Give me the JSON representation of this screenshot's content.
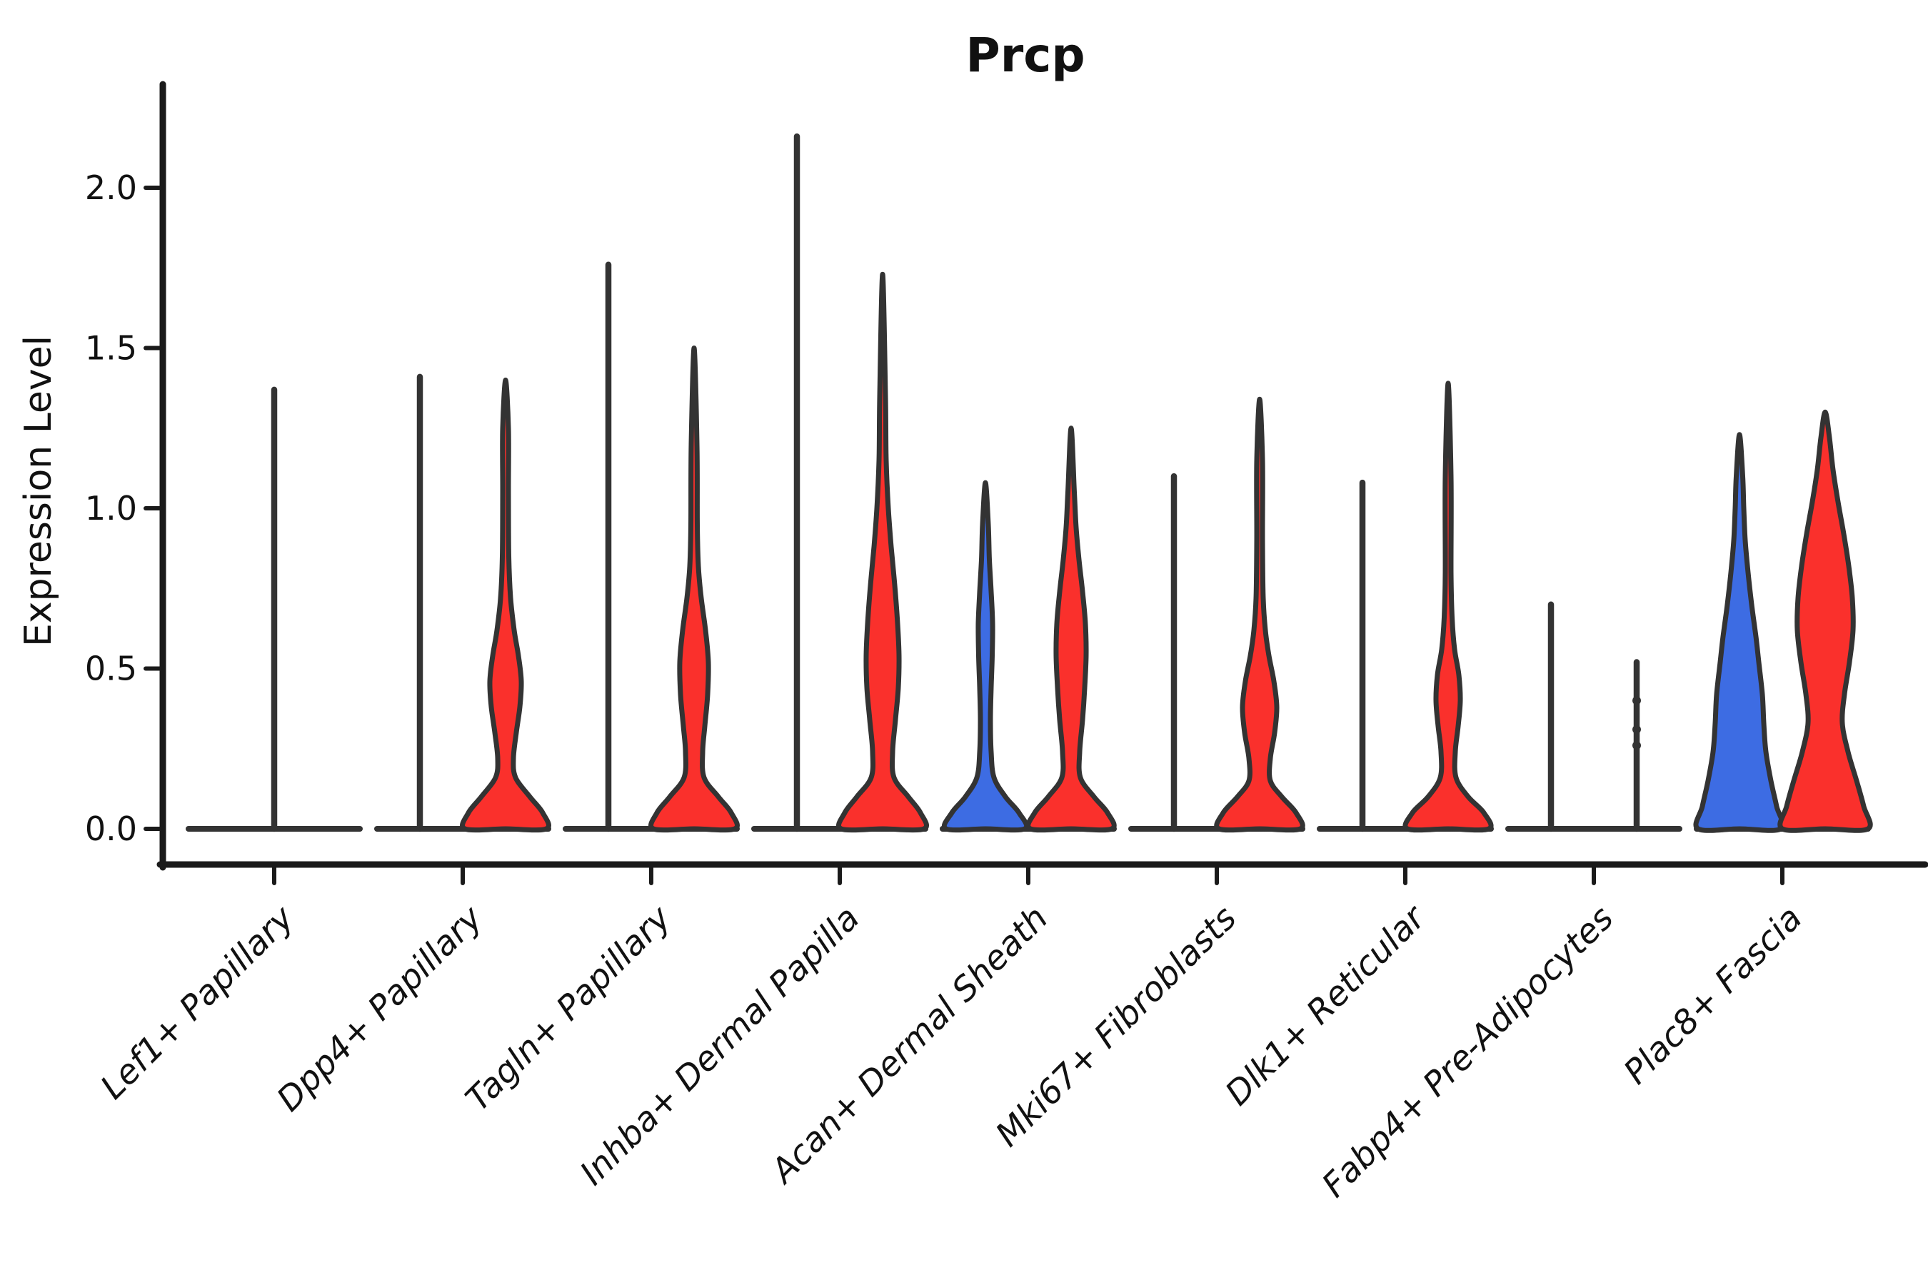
{
  "title": "Prcp",
  "y_axis": {
    "label": "Expression Level"
  },
  "colors": {
    "blue": "#3D6CE3",
    "red": "#FA302C",
    "outline": "#333333",
    "axis": "#1a1a1a",
    "text": "#111111",
    "background": "#ffffff"
  },
  "chart_data": {
    "type": "violin",
    "title": "Prcp",
    "ylabel": "Expression Level",
    "ylim": [
      0,
      2.32
    ],
    "yticks": [
      0,
      0.5,
      1,
      1.5,
      2
    ],
    "ytick_labels": [
      "0.0",
      "0.5",
      "1.0",
      "1.5",
      "2.0"
    ],
    "legend": null,
    "grid": false,
    "series_colors": {
      "blue": "#3D6CE3",
      "red": "#FA302C"
    },
    "categories": [
      "Lef1+ Papillary",
      "Dpp4+ Papillary",
      "Tagln+ Papillary",
      "Inhba+ Dermal Papilla",
      "Acan+ Dermal Sheath",
      "Mki67+ Fibroblasts",
      "Dlk1+ Reticular",
      "Fabp4+ Pre-Adipocytes",
      "Plac8+ Fascia"
    ],
    "groups": [
      {
        "category": "Lef1+ Papillary",
        "violins": [
          {
            "hue": null,
            "offset": 0,
            "max": 1.37,
            "collapsed": true
          }
        ]
      },
      {
        "category": "Dpp4+ Papillary",
        "violins": [
          {
            "hue": "blue",
            "offset": -1,
            "max": 1.41,
            "collapsed": true
          },
          {
            "hue": "red",
            "offset": 1,
            "max": 1.4,
            "collapsed": false,
            "profile": [
              [
                0,
                57
              ],
              [
                0.05,
                52
              ],
              [
                0.1,
                34
              ],
              [
                0.16,
                14
              ],
              [
                0.22,
                11
              ],
              [
                0.3,
                15
              ],
              [
                0.38,
                20
              ],
              [
                0.46,
                22
              ],
              [
                0.54,
                18
              ],
              [
                0.62,
                12
              ],
              [
                0.72,
                7
              ],
              [
                0.85,
                4.5
              ],
              [
                1.05,
                4
              ],
              [
                1.25,
                4
              ],
              [
                1.4,
                0
              ]
            ]
          }
        ]
      },
      {
        "category": "Tagln+ Papillary",
        "violins": [
          {
            "hue": "blue",
            "offset": -1,
            "max": 1.76,
            "collapsed": true
          },
          {
            "hue": "red",
            "offset": 1,
            "max": 1.5,
            "collapsed": false,
            "profile": [
              [
                0,
                57
              ],
              [
                0.05,
                52
              ],
              [
                0.1,
                34
              ],
              [
                0.16,
                14
              ],
              [
                0.24,
                12
              ],
              [
                0.32,
                15
              ],
              [
                0.42,
                19
              ],
              [
                0.52,
                20
              ],
              [
                0.62,
                16
              ],
              [
                0.72,
                10
              ],
              [
                0.82,
                6
              ],
              [
                0.95,
                4.5
              ],
              [
                1.2,
                4
              ],
              [
                1.5,
                0
              ]
            ]
          }
        ]
      },
      {
        "category": "Inhba+ Dermal Papilla",
        "violins": [
          {
            "hue": "blue",
            "offset": -1,
            "max": 2.16,
            "collapsed": true
          },
          {
            "hue": "red",
            "offset": 1,
            "max": 1.73,
            "collapsed": false,
            "profile": [
              [
                0,
                58
              ],
              [
                0.05,
                53
              ],
              [
                0.1,
                36
              ],
              [
                0.16,
                16
              ],
              [
                0.24,
                14
              ],
              [
                0.34,
                18
              ],
              [
                0.44,
                22
              ],
              [
                0.54,
                23
              ],
              [
                0.64,
                21
              ],
              [
                0.76,
                17
              ],
              [
                0.88,
                12
              ],
              [
                1.0,
                8
              ],
              [
                1.15,
                5
              ],
              [
                1.35,
                4
              ],
              [
                1.73,
                0
              ]
            ]
          }
        ]
      },
      {
        "category": "Acan+ Dermal Sheath",
        "violins": [
          {
            "hue": "blue",
            "offset": -1,
            "max": 1.08,
            "collapsed": false,
            "profile": [
              [
                0,
                55
              ],
              [
                0.05,
                47
              ],
              [
                0.1,
                28
              ],
              [
                0.16,
                12
              ],
              [
                0.24,
                8
              ],
              [
                0.34,
                7
              ],
              [
                0.44,
                8
              ],
              [
                0.54,
                9.5
              ],
              [
                0.64,
                10
              ],
              [
                0.74,
                8
              ],
              [
                0.84,
                5.5
              ],
              [
                0.95,
                4
              ],
              [
                1.08,
                0
              ]
            ]
          },
          {
            "hue": "red",
            "offset": 1,
            "max": 1.25,
            "collapsed": false,
            "profile": [
              [
                0,
                57
              ],
              [
                0.05,
                51
              ],
              [
                0.1,
                32
              ],
              [
                0.16,
                13
              ],
              [
                0.24,
                12
              ],
              [
                0.34,
                16
              ],
              [
                0.44,
                19
              ],
              [
                0.54,
                21
              ],
              [
                0.64,
                20
              ],
              [
                0.74,
                16
              ],
              [
                0.84,
                11
              ],
              [
                0.94,
                7
              ],
              [
                1.05,
                4.5
              ],
              [
                1.25,
                0
              ]
            ]
          }
        ]
      },
      {
        "category": "Mki67+ Fibroblasts",
        "violins": [
          {
            "hue": "blue",
            "offset": -1,
            "max": 1.1,
            "collapsed": true
          },
          {
            "hue": "red",
            "offset": 1,
            "max": 1.34,
            "collapsed": false,
            "profile": [
              [
                0,
                57
              ],
              [
                0.05,
                51
              ],
              [
                0.1,
                31
              ],
              [
                0.15,
                15
              ],
              [
                0.22,
                15
              ],
              [
                0.3,
                21
              ],
              [
                0.38,
                24
              ],
              [
                0.46,
                20
              ],
              [
                0.54,
                13
              ],
              [
                0.62,
                8
              ],
              [
                0.72,
                5
              ],
              [
                0.9,
                4
              ],
              [
                1.15,
                4
              ],
              [
                1.34,
                0
              ]
            ]
          }
        ]
      },
      {
        "category": "Dlk1+ Reticular",
        "violins": [
          {
            "hue": "blue",
            "offset": -1,
            "max": 1.08,
            "collapsed": true
          },
          {
            "hue": "red",
            "offset": 1,
            "max": 1.39,
            "collapsed": false,
            "profile": [
              [
                0,
                57
              ],
              [
                0.05,
                50
              ],
              [
                0.1,
                28
              ],
              [
                0.16,
                11
              ],
              [
                0.24,
                10
              ],
              [
                0.32,
                14
              ],
              [
                0.4,
                17
              ],
              [
                0.48,
                15
              ],
              [
                0.56,
                9
              ],
              [
                0.66,
                5.5
              ],
              [
                0.8,
                4
              ],
              [
                1.1,
                4
              ],
              [
                1.39,
                0
              ]
            ]
          }
        ]
      },
      {
        "category": "Fabp4+ Pre-Adipocytes",
        "violins": [
          {
            "hue": null,
            "offset": -1,
            "max": 0.7,
            "collapsed": true
          },
          {
            "hue": null,
            "offset": 1,
            "max": 0.52,
            "collapsed": true,
            "knobs": [
              0.4,
              0.31,
              0.26
            ]
          }
        ]
      },
      {
        "category": "Plac8+ Fascia",
        "violins": [
          {
            "hue": "blue",
            "offset": -1,
            "max": 1.23,
            "collapsed": false,
            "profile": [
              [
                0,
                58
              ],
              [
                0.07,
                52
              ],
              [
                0.15,
                44
              ],
              [
                0.24,
                37
              ],
              [
                0.33,
                34
              ],
              [
                0.42,
                32
              ],
              [
                0.52,
                27
              ],
              [
                0.6,
                23
              ],
              [
                0.7,
                17
              ],
              [
                0.8,
                12
              ],
              [
                0.9,
                8
              ],
              [
                1.0,
                6
              ],
              [
                1.1,
                4.5
              ],
              [
                1.23,
                0
              ]
            ]
          },
          {
            "hue": "red",
            "offset": 1,
            "max": 1.3,
            "collapsed": false,
            "profile": [
              [
                0,
                60
              ],
              [
                0.07,
                54
              ],
              [
                0.15,
                44
              ],
              [
                0.24,
                32
              ],
              [
                0.33,
                24
              ],
              [
                0.42,
                27
              ],
              [
                0.52,
                34
              ],
              [
                0.62,
                39
              ],
              [
                0.72,
                38
              ],
              [
                0.82,
                33
              ],
              [
                0.92,
                26
              ],
              [
                1.02,
                18
              ],
              [
                1.12,
                11
              ],
              [
                1.22,
                6
              ],
              [
                1.3,
                0
              ]
            ]
          }
        ]
      }
    ]
  }
}
